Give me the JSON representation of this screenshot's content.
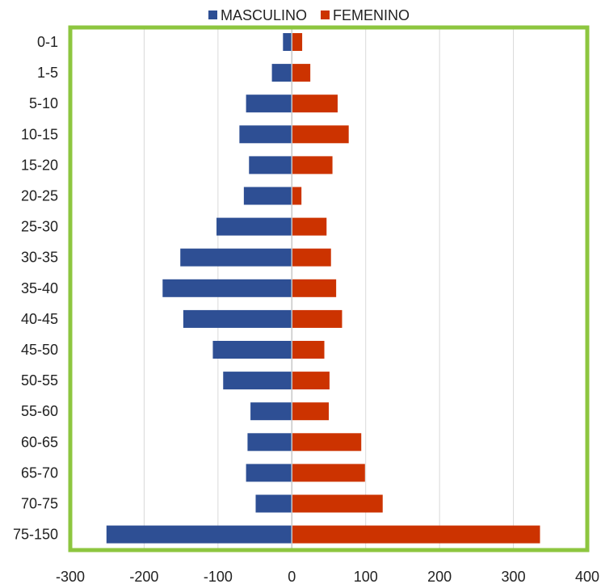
{
  "chart_data": {
    "type": "bar",
    "orientation": "horizontal",
    "categories": [
      "0-1",
      "1-5",
      "5-10",
      "10-15",
      "15-20",
      "20-25",
      "25-30",
      "30-35",
      "35-40",
      "40-45",
      "45-50",
      "50-55",
      "55-60",
      "60-65",
      "65-70",
      "70-75",
      "75-150"
    ],
    "series": [
      {
        "name": "MASCULINO",
        "color": "#2e4f94",
        "values": [
          -12,
          -27,
          -62,
          -71,
          -58,
          -65,
          -102,
          -151,
          -175,
          -147,
          -107,
          -93,
          -56,
          -60,
          -62,
          -49,
          -251
        ]
      },
      {
        "name": "FEMENINO",
        "color": "#cc3300",
        "values": [
          14,
          25,
          62,
          77,
          55,
          13,
          47,
          53,
          60,
          68,
          44,
          51,
          50,
          94,
          99,
          123,
          336
        ]
      }
    ],
    "xlim": [
      -300,
      400
    ],
    "x_ticks": [
      -300,
      -200,
      -100,
      0,
      100,
      200,
      300,
      400
    ],
    "grid": "vertical",
    "legend": "top-center",
    "frame_color": "#8dc63f"
  }
}
